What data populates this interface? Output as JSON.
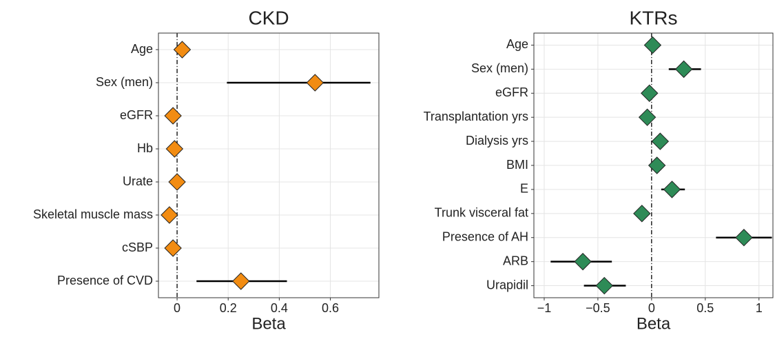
{
  "chart_data": [
    {
      "type": "forest",
      "title": "CKD",
      "xlabel": "Beta",
      "categories": [
        "Age",
        "Sex (men)",
        "eGFR",
        "Hb",
        "Urate",
        "Skeletal muscle mass",
        "cSBP",
        "Presence of CVD"
      ],
      "values": [
        0.02,
        0.54,
        -0.016,
        -0.01,
        0,
        -0.03,
        -0.016,
        0.25
      ],
      "lower": [
        null,
        0.195,
        null,
        null,
        null,
        null,
        null,
        0.076
      ],
      "upper": [
        null,
        0.757,
        null,
        null,
        null,
        null,
        null,
        0.43
      ],
      "color": "#f28c12",
      "xlim": [
        -0.073,
        0.79
      ],
      "xticks": [
        0,
        0.2,
        0.4,
        0.6
      ],
      "reference_line": 0,
      "grid": true
    },
    {
      "type": "forest",
      "title": "KTRs",
      "xlabel": "Beta",
      "categories": [
        "Age",
        "Sex (men)",
        "eGFR",
        "Transplantation yrs",
        "Dialysis yrs",
        "BMI",
        "E",
        "Trunk visceral fat",
        "Presence of AH",
        "ARB",
        "Urapidil"
      ],
      "values": [
        0.01,
        0.3,
        -0.02,
        -0.04,
        0.08,
        0.05,
        0.19,
        -0.09,
        0.86,
        -0.64,
        -0.44
      ],
      "lower": [
        null,
        0.16,
        null,
        null,
        null,
        null,
        0.09,
        null,
        0.6,
        -0.94,
        -0.63
      ],
      "upper": [
        null,
        0.46,
        null,
        null,
        null,
        null,
        0.31,
        null,
        1.12,
        -0.37,
        -0.24
      ],
      "color": "#2e8b57",
      "xlim": [
        -1.096,
        1.13
      ],
      "xticks": [
        {
          "value": -1,
          "label": "−1"
        },
        {
          "value": -0.5,
          "label": "−0.5"
        },
        0,
        0.5,
        1
      ],
      "reference_line": 0,
      "grid": true
    }
  ]
}
